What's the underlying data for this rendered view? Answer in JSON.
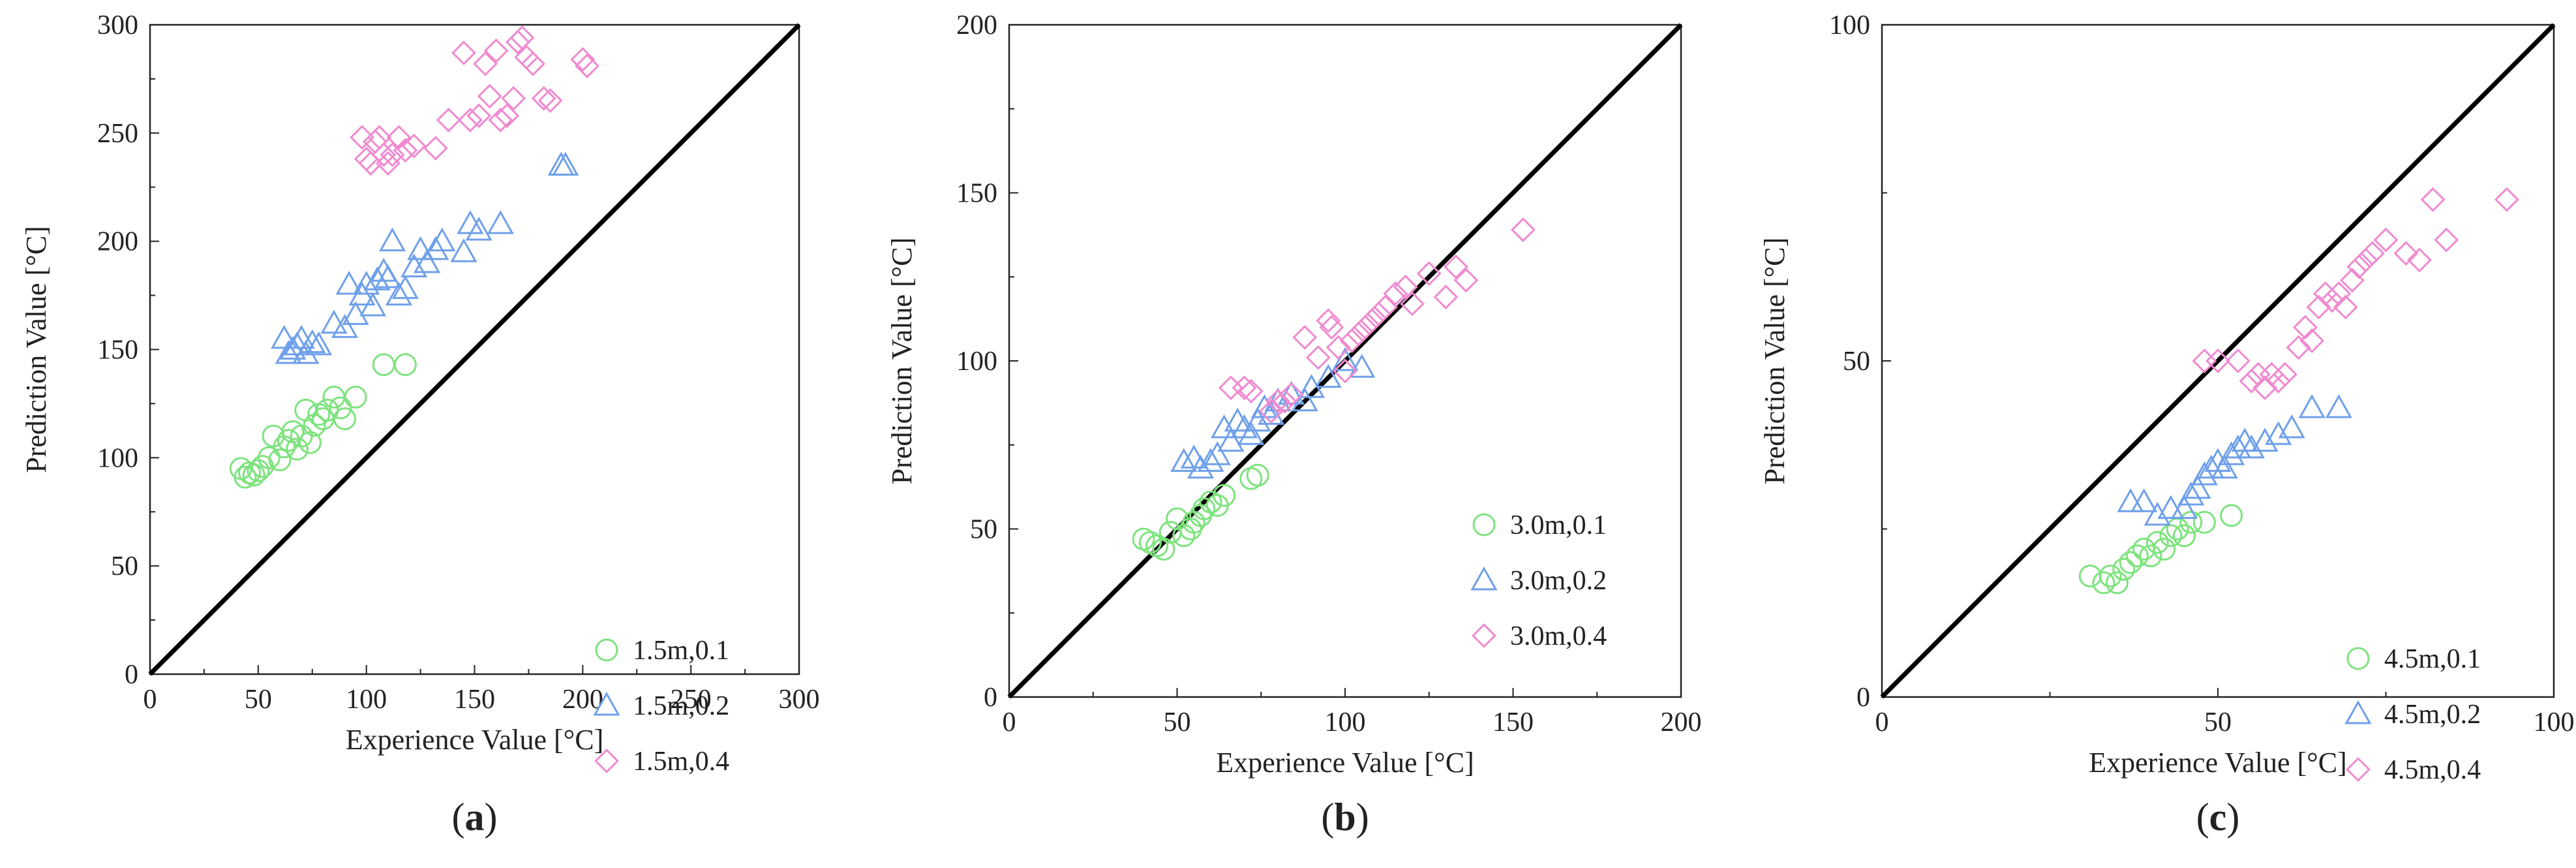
{
  "chart_data": [
    {
      "type": "scatter",
      "panel_label": "a",
      "xlabel": "Experience Value [°C]",
      "ylabel": "Prediction Value [°C]",
      "xlim": [
        0,
        300
      ],
      "ylim": [
        0,
        300
      ],
      "xticks": [
        0,
        50,
        100,
        150,
        200,
        250,
        300
      ],
      "yticks": [
        0,
        50,
        100,
        150,
        200,
        250,
        300
      ],
      "reference_line": "y = x",
      "legend_position": "bottom-right",
      "series": [
        {
          "name": "1.5m,0.1",
          "marker": "circle",
          "color": "#7ee37e",
          "points": [
            [
              42,
              95
            ],
            [
              44,
              91
            ],
            [
              46,
              93
            ],
            [
              48,
              92
            ],
            [
              50,
              94
            ],
            [
              52,
              96
            ],
            [
              55,
              100
            ],
            [
              57,
              110
            ],
            [
              60,
              99
            ],
            [
              62,
              105
            ],
            [
              64,
              108
            ],
            [
              66,
              112
            ],
            [
              68,
              104
            ],
            [
              70,
              110
            ],
            [
              72,
              122
            ],
            [
              74,
              107
            ],
            [
              76,
              115
            ],
            [
              78,
              120
            ],
            [
              80,
              118
            ],
            [
              82,
              122
            ],
            [
              85,
              128
            ],
            [
              88,
              123
            ],
            [
              90,
              118
            ],
            [
              95,
              128
            ],
            [
              108,
              143
            ],
            [
              118,
              143
            ]
          ]
        },
        {
          "name": "1.5m,0.2",
          "marker": "triangle",
          "color": "#6fa0ea",
          "points": [
            [
              62,
              155
            ],
            [
              64,
              148
            ],
            [
              66,
              150
            ],
            [
              68,
              152
            ],
            [
              70,
              155
            ],
            [
              72,
              148
            ],
            [
              75,
              153
            ],
            [
              78,
              152
            ],
            [
              85,
              162
            ],
            [
              90,
              160
            ],
            [
              92,
              180
            ],
            [
              95,
              166
            ],
            [
              98,
              175
            ],
            [
              100,
              180
            ],
            [
              103,
              170
            ],
            [
              105,
              182
            ],
            [
              108,
              186
            ],
            [
              110,
              183
            ],
            [
              112,
              200
            ],
            [
              115,
              175
            ],
            [
              118,
              178
            ],
            [
              122,
              188
            ],
            [
              125,
              196
            ],
            [
              128,
              190
            ],
            [
              132,
              196
            ],
            [
              135,
              200
            ],
            [
              145,
              195
            ],
            [
              148,
              208
            ],
            [
              152,
              205
            ],
            [
              162,
              208
            ],
            [
              190,
              235
            ],
            [
              192,
              235
            ]
          ]
        },
        {
          "name": "1.5m,0.4",
          "marker": "diamond",
          "color": "#f08ad0",
          "points": [
            [
              98,
              248
            ],
            [
              100,
              238
            ],
            [
              102,
              236
            ],
            [
              104,
              246
            ],
            [
              106,
              248
            ],
            [
              108,
              240
            ],
            [
              110,
              236
            ],
            [
              112,
              240
            ],
            [
              115,
              248
            ],
            [
              118,
              242
            ],
            [
              122,
              244
            ],
            [
              132,
              243
            ],
            [
              138,
              256
            ],
            [
              145,
              287
            ],
            [
              148,
              256
            ],
            [
              152,
              258
            ],
            [
              155,
              282
            ],
            [
              157,
              267
            ],
            [
              160,
              288
            ],
            [
              162,
              256
            ],
            [
              165,
              258
            ],
            [
              168,
              266
            ],
            [
              170,
              292
            ],
            [
              172,
              294
            ],
            [
              174,
              285
            ],
            [
              177,
              282
            ],
            [
              182,
              266
            ],
            [
              185,
              265
            ],
            [
              200,
              284
            ],
            [
              202,
              281
            ]
          ]
        }
      ]
    },
    {
      "type": "scatter",
      "panel_label": "b",
      "xlabel": "Experience Value [°C]",
      "ylabel": "Prediction Value [°C]",
      "xlim": [
        0,
        200
      ],
      "ylim": [
        0,
        200
      ],
      "xticks": [
        0,
        50,
        100,
        150,
        200
      ],
      "yticks": [
        0,
        50,
        100,
        150,
        200
      ],
      "reference_line": "y = x",
      "legend_position": "bottom-right",
      "series": [
        {
          "name": "3.0m,0.1",
          "marker": "circle",
          "color": "#7ee37e",
          "points": [
            [
              40,
              47
            ],
            [
              42,
              46
            ],
            [
              44,
              45
            ],
            [
              46,
              44
            ],
            [
              48,
              49
            ],
            [
              50,
              53
            ],
            [
              52,
              48
            ],
            [
              54,
              50
            ],
            [
              55,
              52
            ],
            [
              57,
              54
            ],
            [
              58,
              56
            ],
            [
              60,
              58
            ],
            [
              62,
              57
            ],
            [
              64,
              60
            ],
            [
              72,
              65
            ],
            [
              74,
              66
            ]
          ]
        },
        {
          "name": "3.0m,0.2",
          "marker": "triangle",
          "color": "#6fa0ea",
          "points": [
            [
              52,
              70
            ],
            [
              55,
              71
            ],
            [
              57,
              68
            ],
            [
              60,
              70
            ],
            [
              62,
              72
            ],
            [
              64,
              80
            ],
            [
              66,
              76
            ],
            [
              68,
              82
            ],
            [
              70,
              80
            ],
            [
              72,
              78
            ],
            [
              74,
              82
            ],
            [
              76,
              86
            ],
            [
              78,
              84
            ],
            [
              80,
              88
            ],
            [
              84,
              90
            ],
            [
              88,
              88
            ],
            [
              90,
              92
            ],
            [
              95,
              95
            ],
            [
              100,
              100
            ],
            [
              105,
              98
            ]
          ]
        },
        {
          "name": "3.0m,0.4",
          "marker": "diamond",
          "color": "#f08ad0",
          "points": [
            [
              66,
              92
            ],
            [
              70,
              92
            ],
            [
              72,
              91
            ],
            [
              78,
              85
            ],
            [
              80,
              88
            ],
            [
              82,
              88
            ],
            [
              84,
              90
            ],
            [
              88,
              107
            ],
            [
              92,
              101
            ],
            [
              95,
              112
            ],
            [
              96,
              110
            ],
            [
              98,
              104
            ],
            [
              100,
              97
            ],
            [
              102,
              106
            ],
            [
              104,
              108
            ],
            [
              106,
              110
            ],
            [
              108,
              112
            ],
            [
              110,
              114
            ],
            [
              112,
              116
            ],
            [
              115,
              120
            ],
            [
              118,
              122
            ],
            [
              120,
              117
            ],
            [
              125,
              126
            ],
            [
              130,
              119
            ],
            [
              133,
              128
            ],
            [
              136,
              124
            ],
            [
              153,
              139
            ]
          ]
        }
      ]
    },
    {
      "type": "scatter",
      "panel_label": "c",
      "xlabel": "Experience Value [°C]",
      "ylabel": "Prediction Value [°C]",
      "xlim": [
        0,
        100
      ],
      "ylim": [
        0,
        100
      ],
      "xticks": [
        0,
        50,
        100
      ],
      "yticks": [
        0,
        50,
        100
      ],
      "reference_line": "y = x",
      "legend_position": "bottom-right",
      "series": [
        {
          "name": "4.5m,0.1",
          "marker": "circle",
          "color": "#7ee37e",
          "points": [
            [
              31,
              18
            ],
            [
              33,
              17
            ],
            [
              34,
              18
            ],
            [
              35,
              17
            ],
            [
              36,
              19
            ],
            [
              37,
              20
            ],
            [
              38,
              21
            ],
            [
              39,
              22
            ],
            [
              40,
              21
            ],
            [
              41,
              23
            ],
            [
              42,
              22
            ],
            [
              43,
              24
            ],
            [
              44,
              25
            ],
            [
              45,
              24
            ],
            [
              46,
              26
            ],
            [
              48,
              26
            ],
            [
              52,
              27
            ]
          ]
        },
        {
          "name": "4.5m,0.2",
          "marker": "triangle",
          "color": "#6fa0ea",
          "points": [
            [
              37,
              29
            ],
            [
              39,
              29
            ],
            [
              41,
              27
            ],
            [
              43,
              28
            ],
            [
              45,
              28
            ],
            [
              46,
              30
            ],
            [
              47,
              31
            ],
            [
              48,
              33
            ],
            [
              49,
              34
            ],
            [
              50,
              35
            ],
            [
              51,
              34
            ],
            [
              52,
              36
            ],
            [
              53,
              37
            ],
            [
              54,
              38
            ],
            [
              55,
              37
            ],
            [
              57,
              38
            ],
            [
              59,
              39
            ],
            [
              61,
              40
            ],
            [
              64,
              43
            ],
            [
              68,
              43
            ]
          ]
        },
        {
          "name": "4.5m,0.4",
          "marker": "diamond",
          "color": "#f08ad0",
          "points": [
            [
              48,
              50
            ],
            [
              50,
              50
            ],
            [
              53,
              50
            ],
            [
              55,
              47
            ],
            [
              56,
              48
            ],
            [
              57,
              46
            ],
            [
              58,
              48
            ],
            [
              59,
              47
            ],
            [
              60,
              48
            ],
            [
              62,
              52
            ],
            [
              63,
              55
            ],
            [
              64,
              53
            ],
            [
              65,
              58
            ],
            [
              66,
              60
            ],
            [
              67,
              59
            ],
            [
              68,
              60
            ],
            [
              69,
              58
            ],
            [
              70,
              62
            ],
            [
              71,
              64
            ],
            [
              72,
              65
            ],
            [
              73,
              66
            ],
            [
              75,
              68
            ],
            [
              78,
              66
            ],
            [
              80,
              65
            ],
            [
              82,
              74
            ],
            [
              84,
              68
            ],
            [
              93,
              74
            ]
          ]
        }
      ]
    }
  ]
}
